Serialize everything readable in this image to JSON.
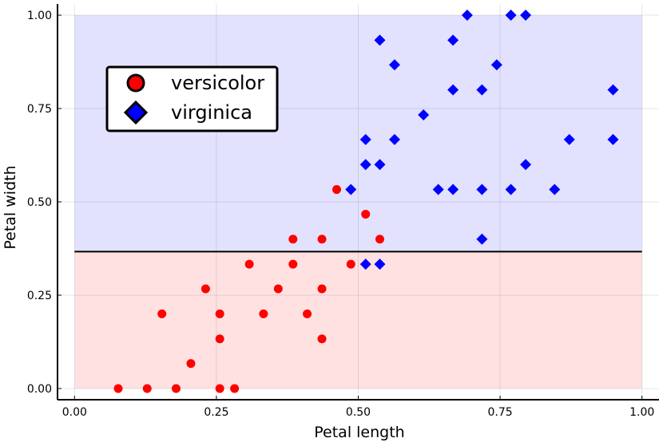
{
  "chart_data": {
    "type": "scatter",
    "xlabel": "Petal length",
    "ylabel": "Petal width",
    "xlim": [
      -0.03,
      1.03
    ],
    "ylim": [
      -0.03,
      1.03
    ],
    "xticks": [
      "0.00",
      "0.25",
      "0.50",
      "0.75",
      "1.00"
    ],
    "yticks": [
      "0.00",
      "0.25",
      "0.50",
      "0.75",
      "1.00"
    ],
    "grid": true,
    "legend": "top-left",
    "decision_boundary": {
      "y": 0.3667,
      "x_range": [
        0.0,
        1.0
      ],
      "lower_region_color": "#ffe1e1",
      "upper_region_color": "#e2e2ff",
      "line_color": "#000000"
    },
    "series": [
      {
        "name": "versicolor",
        "marker": "circle",
        "color": "#ff0000",
        "points": [
          [
            0.077,
            0.0
          ],
          [
            0.128,
            0.0
          ],
          [
            0.179,
            0.0
          ],
          [
            0.256,
            0.0
          ],
          [
            0.282,
            0.0
          ],
          [
            0.205,
            0.067
          ],
          [
            0.256,
            0.133
          ],
          [
            0.436,
            0.133
          ],
          [
            0.154,
            0.2
          ],
          [
            0.256,
            0.2
          ],
          [
            0.333,
            0.2
          ],
          [
            0.41,
            0.2
          ],
          [
            0.231,
            0.267
          ],
          [
            0.359,
            0.267
          ],
          [
            0.436,
            0.267
          ],
          [
            0.308,
            0.333
          ],
          [
            0.385,
            0.333
          ],
          [
            0.487,
            0.333
          ],
          [
            0.385,
            0.4
          ],
          [
            0.436,
            0.4
          ],
          [
            0.538,
            0.4
          ],
          [
            0.513,
            0.467
          ],
          [
            0.462,
            0.533
          ]
        ]
      },
      {
        "name": "virginica",
        "marker": "diamond",
        "color": "#0000ff",
        "points": [
          [
            0.513,
            0.333
          ],
          [
            0.538,
            0.333
          ],
          [
            0.718,
            0.4
          ],
          [
            0.487,
            0.533
          ],
          [
            0.641,
            0.533
          ],
          [
            0.667,
            0.533
          ],
          [
            0.718,
            0.533
          ],
          [
            0.769,
            0.533
          ],
          [
            0.846,
            0.533
          ],
          [
            0.513,
            0.6
          ],
          [
            0.538,
            0.6
          ],
          [
            0.795,
            0.6
          ],
          [
            0.513,
            0.667
          ],
          [
            0.564,
            0.667
          ],
          [
            0.872,
            0.667
          ],
          [
            0.949,
            0.667
          ],
          [
            0.615,
            0.733
          ],
          [
            0.667,
            0.8
          ],
          [
            0.718,
            0.8
          ],
          [
            0.949,
            0.8
          ],
          [
            0.564,
            0.867
          ],
          [
            0.744,
            0.867
          ],
          [
            0.538,
            0.933
          ],
          [
            0.667,
            0.933
          ],
          [
            0.692,
            1.0
          ],
          [
            0.769,
            1.0
          ],
          [
            0.795,
            1.0
          ]
        ]
      }
    ]
  }
}
